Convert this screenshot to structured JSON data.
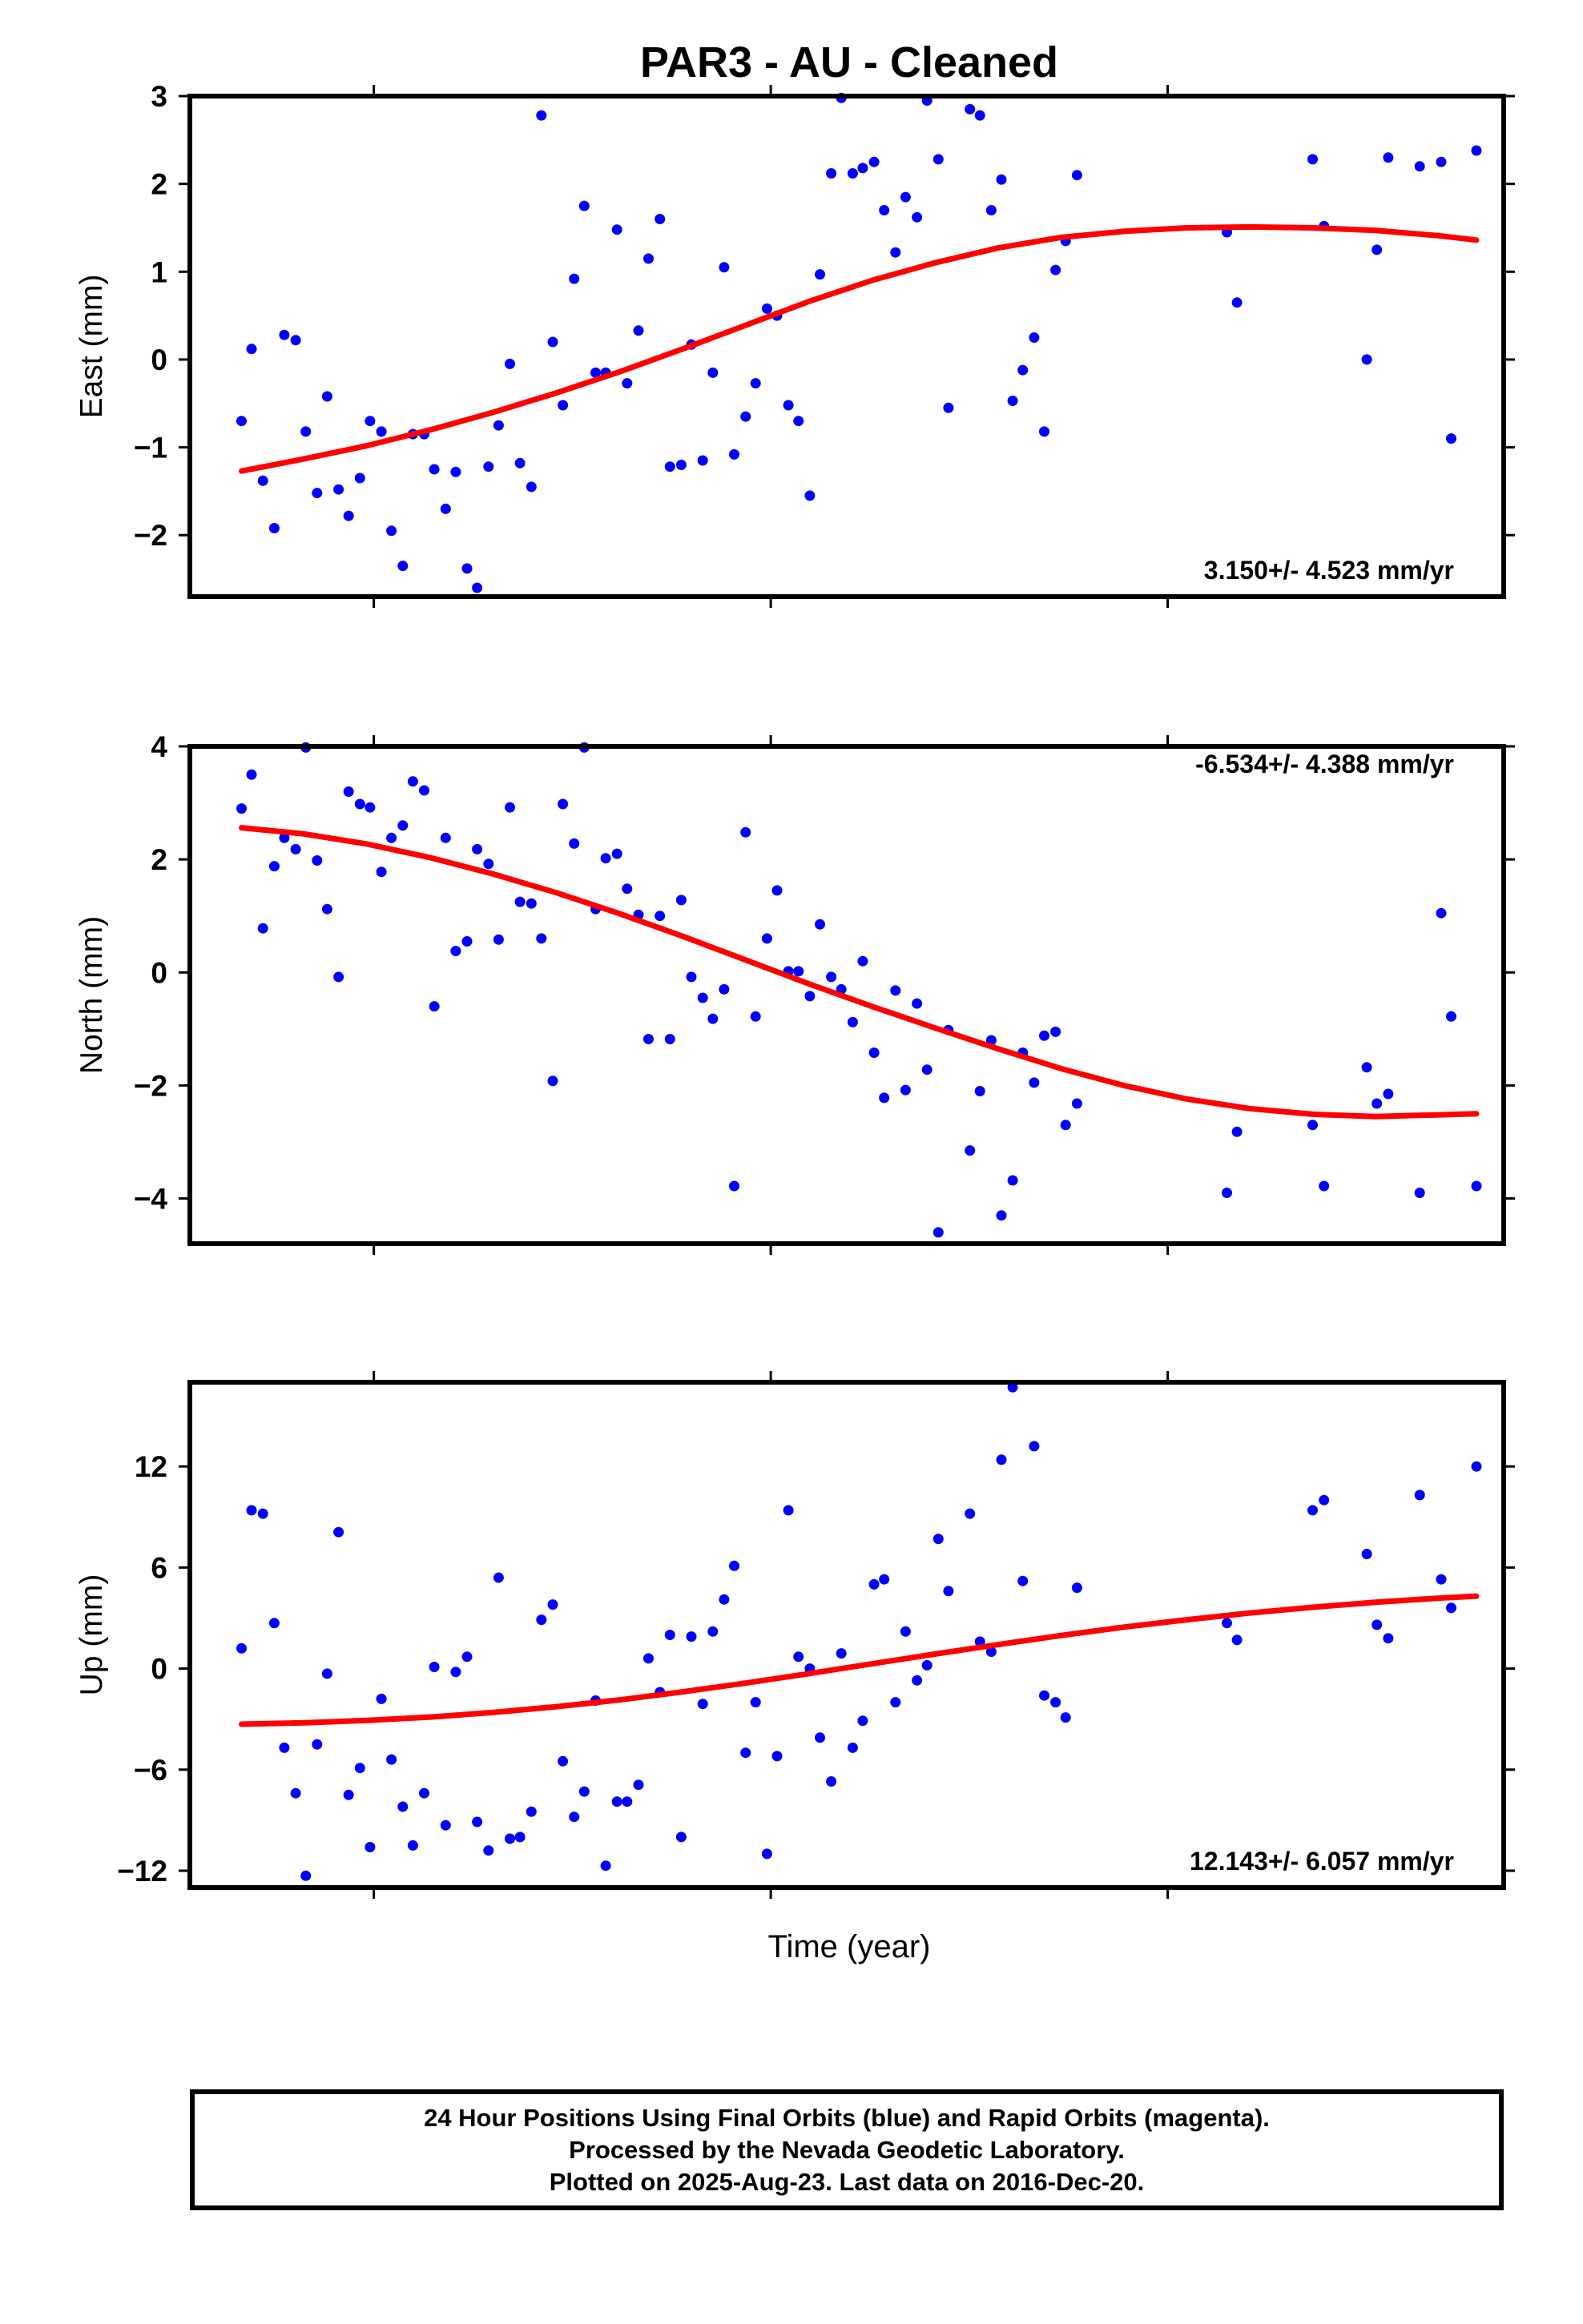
{
  "title": "PAR3  - AU - Cleaned",
  "xlabel": "Time (year)",
  "footer": {
    "line1": "24 Hour Positions Using Final Orbits (blue) and Rapid Orbits (magenta).",
    "line2": "Processed by the Nevada Geodetic Laboratory.",
    "line3": "Plotted on 2025-Aug-23. Last data on 2016-Dec-20."
  },
  "colors": {
    "points": "#0000ff",
    "fit": "#ff0000",
    "frame": "#000000"
  },
  "chart_data": [
    {
      "type": "scatter",
      "ylabel": "East (mm)",
      "rate_label": "3.150+/- 4.523 mm/yr",
      "ylim": [
        -2.7,
        3.0
      ],
      "yticks": [
        -2,
        -1,
        0,
        1,
        2,
        3
      ],
      "xlim": [
        0,
        100
      ],
      "xticks": [
        12.5,
        44,
        75.5
      ],
      "points": [
        [
          2,
          -0.7
        ],
        [
          2.8,
          0.12
        ],
        [
          3.7,
          -1.38
        ],
        [
          4.6,
          -1.92
        ],
        [
          5.4,
          0.28
        ],
        [
          6.3,
          0.22
        ],
        [
          7.1,
          -0.82
        ],
        [
          8,
          -1.52
        ],
        [
          8.8,
          -0.42
        ],
        [
          9.7,
          -1.48
        ],
        [
          10.5,
          -1.78
        ],
        [
          11.4,
          -1.35
        ],
        [
          12.2,
          -0.7
        ],
        [
          13.1,
          -0.82
        ],
        [
          13.9,
          -1.95
        ],
        [
          14.8,
          -2.35
        ],
        [
          15.6,
          -0.85
        ],
        [
          16.5,
          -0.85
        ],
        [
          17.3,
          -1.25
        ],
        [
          18.2,
          -1.7
        ],
        [
          19,
          -1.28
        ],
        [
          19.9,
          -2.38
        ],
        [
          20.7,
          -2.6
        ],
        [
          21.6,
          -1.22
        ],
        [
          22.4,
          -0.75
        ],
        [
          23.3,
          -0.05
        ],
        [
          24.1,
          -1.18
        ],
        [
          25,
          -1.45
        ],
        [
          25.8,
          2.78
        ],
        [
          26.7,
          0.2
        ],
        [
          27.5,
          -0.52
        ],
        [
          28.4,
          0.92
        ],
        [
          29.2,
          1.75
        ],
        [
          30.1,
          -0.15
        ],
        [
          30.9,
          -0.15
        ],
        [
          31.8,
          1.48
        ],
        [
          32.6,
          -0.27
        ],
        [
          33.5,
          0.33
        ],
        [
          34.3,
          1.15
        ],
        [
          35.2,
          1.6
        ],
        [
          36,
          -1.22
        ],
        [
          36.9,
          -1.2
        ],
        [
          37.7,
          0.17
        ],
        [
          38.6,
          -1.15
        ],
        [
          39.4,
          -0.15
        ],
        [
          40.3,
          1.05
        ],
        [
          41.1,
          -1.08
        ],
        [
          42,
          -0.65
        ],
        [
          42.8,
          -0.27
        ],
        [
          43.7,
          0.58
        ],
        [
          44.5,
          0.5
        ],
        [
          45.4,
          -0.52
        ],
        [
          46.2,
          -0.7
        ],
        [
          47.1,
          -1.55
        ],
        [
          47.9,
          0.97
        ],
        [
          48.8,
          2.12
        ],
        [
          49.6,
          2.98
        ],
        [
          50.5,
          2.12
        ],
        [
          51.3,
          2.18
        ],
        [
          52.2,
          2.25
        ],
        [
          53,
          1.7
        ],
        [
          53.9,
          1.22
        ],
        [
          54.7,
          1.85
        ],
        [
          55.6,
          1.62
        ],
        [
          56.4,
          2.95
        ],
        [
          57.3,
          2.28
        ],
        [
          58.1,
          -0.55
        ],
        [
          59.8,
          2.85
        ],
        [
          60.6,
          2.78
        ],
        [
          61.5,
          1.7
        ],
        [
          62.3,
          2.05
        ],
        [
          63.2,
          -0.47
        ],
        [
          64,
          -0.12
        ],
        [
          64.9,
          0.25
        ],
        [
          65.7,
          -0.82
        ],
        [
          66.6,
          1.02
        ],
        [
          67.4,
          1.35
        ],
        [
          68.3,
          2.1
        ],
        [
          80.2,
          1.45
        ],
        [
          81,
          0.65
        ],
        [
          87,
          2.28
        ],
        [
          87.9,
          1.52
        ],
        [
          91.3,
          0
        ],
        [
          92.1,
          1.25
        ],
        [
          93,
          2.3
        ],
        [
          95.5,
          2.2
        ],
        [
          97.2,
          2.25
        ],
        [
          98,
          -0.9
        ],
        [
          100,
          2.38
        ]
      ],
      "fit": [
        [
          2,
          -1.27
        ],
        [
          7,
          -1.13
        ],
        [
          12,
          -0.98
        ],
        [
          17,
          -0.8
        ],
        [
          22,
          -0.6
        ],
        [
          27,
          -0.38
        ],
        [
          32,
          -0.14
        ],
        [
          37,
          0.12
        ],
        [
          42,
          0.39
        ],
        [
          47,
          0.66
        ],
        [
          52,
          0.9
        ],
        [
          57,
          1.1
        ],
        [
          62,
          1.27
        ],
        [
          67,
          1.39
        ],
        [
          72,
          1.46
        ],
        [
          77,
          1.5
        ],
        [
          82,
          1.51
        ],
        [
          87,
          1.5
        ],
        [
          92,
          1.47
        ],
        [
          97,
          1.41
        ],
        [
          100,
          1.36
        ]
      ]
    },
    {
      "type": "scatter",
      "ylabel": "North (mm)",
      "rate_label": "-6.534+/- 4.388 mm/yr",
      "ylim": [
        -4.8,
        4.0
      ],
      "yticks": [
        -4,
        -2,
        0,
        2,
        4
      ],
      "xlim": [
        0,
        100
      ],
      "xticks": [
        12.5,
        44,
        75.5
      ],
      "points": [
        [
          2,
          2.9
        ],
        [
          2.8,
          3.5
        ],
        [
          3.7,
          0.78
        ],
        [
          4.6,
          1.88
        ],
        [
          5.4,
          2.38
        ],
        [
          6.3,
          2.18
        ],
        [
          7.1,
          3.98
        ],
        [
          8,
          1.98
        ],
        [
          8.8,
          1.12
        ],
        [
          9.7,
          -0.08
        ],
        [
          10.5,
          3.2
        ],
        [
          11.4,
          2.98
        ],
        [
          12.2,
          2.92
        ],
        [
          13.1,
          1.78
        ],
        [
          13.9,
          2.38
        ],
        [
          14.8,
          2.6
        ],
        [
          15.6,
          3.38
        ],
        [
          16.5,
          3.22
        ],
        [
          17.3,
          -0.6
        ],
        [
          18.2,
          2.38
        ],
        [
          19,
          0.38
        ],
        [
          19.9,
          0.55
        ],
        [
          20.7,
          2.18
        ],
        [
          21.6,
          1.92
        ],
        [
          22.4,
          0.58
        ],
        [
          23.3,
          2.92
        ],
        [
          24.1,
          1.25
        ],
        [
          25,
          1.22
        ],
        [
          25.8,
          0.6
        ],
        [
          26.7,
          -1.92
        ],
        [
          27.5,
          2.98
        ],
        [
          28.4,
          2.28
        ],
        [
          29.2,
          3.98
        ],
        [
          30.1,
          1.12
        ],
        [
          30.9,
          2.02
        ],
        [
          31.8,
          2.1
        ],
        [
          32.6,
          1.48
        ],
        [
          33.5,
          1.02
        ],
        [
          34.3,
          -1.18
        ],
        [
          35.2,
          1
        ],
        [
          36,
          -1.18
        ],
        [
          36.9,
          1.28
        ],
        [
          37.7,
          -0.08
        ],
        [
          38.6,
          -0.45
        ],
        [
          39.4,
          -0.82
        ],
        [
          40.3,
          -0.3
        ],
        [
          41.1,
          -3.78
        ],
        [
          42,
          2.48
        ],
        [
          42.8,
          -0.78
        ],
        [
          43.7,
          0.6
        ],
        [
          44.5,
          1.45
        ],
        [
          45.4,
          0.02
        ],
        [
          46.2,
          0.02
        ],
        [
          47.1,
          -0.42
        ],
        [
          47.9,
          0.85
        ],
        [
          48.8,
          -0.08
        ],
        [
          49.6,
          -0.3
        ],
        [
          50.5,
          -0.88
        ],
        [
          51.3,
          0.2
        ],
        [
          52.2,
          -1.42
        ],
        [
          53,
          -2.22
        ],
        [
          53.9,
          -0.32
        ],
        [
          54.7,
          -2.08
        ],
        [
          55.6,
          -0.55
        ],
        [
          56.4,
          -1.72
        ],
        [
          57.3,
          -4.6
        ],
        [
          58.1,
          -1.02
        ],
        [
          59.8,
          -3.15
        ],
        [
          60.6,
          -2.1
        ],
        [
          61.5,
          -1.2
        ],
        [
          62.3,
          -4.3
        ],
        [
          63.2,
          -3.68
        ],
        [
          64,
          -1.42
        ],
        [
          64.9,
          -1.95
        ],
        [
          65.7,
          -1.12
        ],
        [
          66.6,
          -1.05
        ],
        [
          67.4,
          -2.7
        ],
        [
          68.3,
          -2.32
        ],
        [
          80.2,
          -3.9
        ],
        [
          81,
          -2.82
        ],
        [
          87,
          -2.7
        ],
        [
          87.9,
          -3.78
        ],
        [
          91.3,
          -1.68
        ],
        [
          92.1,
          -2.32
        ],
        [
          93,
          -2.15
        ],
        [
          95.5,
          -3.9
        ],
        [
          97.2,
          1.05
        ],
        [
          98,
          -0.78
        ],
        [
          100,
          -3.78
        ]
      ],
      "fit": [
        [
          2,
          2.56
        ],
        [
          7,
          2.45
        ],
        [
          12,
          2.27
        ],
        [
          17,
          2.03
        ],
        [
          22,
          1.74
        ],
        [
          27,
          1.41
        ],
        [
          32,
          1.04
        ],
        [
          37,
          0.64
        ],
        [
          42,
          0.22
        ],
        [
          47,
          -0.2
        ],
        [
          52,
          -0.6
        ],
        [
          57,
          -0.98
        ],
        [
          62,
          -1.35
        ],
        [
          67,
          -1.7
        ],
        [
          72,
          -2.0
        ],
        [
          77,
          -2.24
        ],
        [
          82,
          -2.41
        ],
        [
          87,
          -2.51
        ],
        [
          92,
          -2.55
        ],
        [
          97,
          -2.52
        ],
        [
          100,
          -2.5
        ]
      ]
    },
    {
      "type": "scatter",
      "ylabel": "Up (mm)",
      "rate_label": "12.143+/- 6.057 mm/yr",
      "ylim": [
        -13,
        17
      ],
      "yticks": [
        -12,
        -6,
        0,
        6,
        12
      ],
      "xlim": [
        0,
        100
      ],
      "xticks": [
        12.5,
        44,
        75.5
      ],
      "points": [
        [
          2,
          1.2
        ],
        [
          2.8,
          9.4
        ],
        [
          3.7,
          9.2
        ],
        [
          4.6,
          2.7
        ],
        [
          5.4,
          -4.7
        ],
        [
          6.3,
          -7.4
        ],
        [
          7.1,
          -12.3
        ],
        [
          8,
          -4.5
        ],
        [
          8.8,
          -0.3
        ],
        [
          9.7,
          8.1
        ],
        [
          10.5,
          -7.5
        ],
        [
          11.4,
          -5.9
        ],
        [
          12.2,
          -10.6
        ],
        [
          13.1,
          -1.8
        ],
        [
          13.9,
          -5.4
        ],
        [
          14.8,
          -8.2
        ],
        [
          15.6,
          -10.5
        ],
        [
          16.5,
          -7.4
        ],
        [
          17.3,
          0.1
        ],
        [
          18.2,
          -9.3
        ],
        [
          19,
          -0.2
        ],
        [
          19.9,
          0.7
        ],
        [
          20.7,
          -9.1
        ],
        [
          21.6,
          -10.8
        ],
        [
          22.4,
          5.4
        ],
        [
          23.3,
          -10.1
        ],
        [
          24.1,
          -10
        ],
        [
          25,
          -8.5
        ],
        [
          25.8,
          2.9
        ],
        [
          26.7,
          3.8
        ],
        [
          27.5,
          -5.5
        ],
        [
          28.4,
          -8.8
        ],
        [
          29.2,
          -7.3
        ],
        [
          30.1,
          -1.9
        ],
        [
          30.9,
          -11.7
        ],
        [
          31.8,
          -7.9
        ],
        [
          32.6,
          -7.9
        ],
        [
          33.5,
          -6.9
        ],
        [
          34.3,
          0.6
        ],
        [
          35.2,
          -1.4
        ],
        [
          36,
          2
        ],
        [
          36.9,
          -10
        ],
        [
          37.7,
          1.9
        ],
        [
          38.6,
          -2.1
        ],
        [
          39.4,
          2.2
        ],
        [
          40.3,
          4.1
        ],
        [
          41.1,
          6.1
        ],
        [
          42,
          -5
        ],
        [
          42.8,
          -2
        ],
        [
          43.7,
          -11
        ],
        [
          44.5,
          -5.2
        ],
        [
          45.4,
          9.4
        ],
        [
          46.2,
          0.7
        ],
        [
          47.1,
          0
        ],
        [
          47.9,
          -4.1
        ],
        [
          48.8,
          -6.7
        ],
        [
          49.6,
          0.9
        ],
        [
          50.5,
          -4.7
        ],
        [
          51.3,
          -3.1
        ],
        [
          52.2,
          5
        ],
        [
          53,
          5.3
        ],
        [
          53.9,
          -2
        ],
        [
          54.7,
          2.2
        ],
        [
          55.6,
          -0.7
        ],
        [
          56.4,
          0.2
        ],
        [
          57.3,
          7.7
        ],
        [
          58.1,
          4.6
        ],
        [
          59.8,
          9.2
        ],
        [
          60.6,
          1.6
        ],
        [
          61.5,
          1
        ],
        [
          62.3,
          12.4
        ],
        [
          63.2,
          16.7
        ],
        [
          64,
          5.2
        ],
        [
          64.9,
          13.2
        ],
        [
          65.7,
          -1.6
        ],
        [
          66.6,
          -2
        ],
        [
          67.4,
          -2.9
        ],
        [
          68.3,
          4.8
        ],
        [
          80.2,
          2.7
        ],
        [
          81,
          1.7
        ],
        [
          87,
          9.4
        ],
        [
          87.9,
          10
        ],
        [
          91.3,
          6.8
        ],
        [
          92.1,
          2.6
        ],
        [
          93,
          1.8
        ],
        [
          95.5,
          10.3
        ],
        [
          97.2,
          5.3
        ],
        [
          98,
          3.6
        ],
        [
          100,
          12
        ]
      ],
      "fit": [
        [
          2,
          -3.3
        ],
        [
          7,
          -3.22
        ],
        [
          12,
          -3.08
        ],
        [
          17,
          -2.88
        ],
        [
          22,
          -2.6
        ],
        [
          27,
          -2.26
        ],
        [
          32,
          -1.86
        ],
        [
          37,
          -1.38
        ],
        [
          42,
          -0.86
        ],
        [
          47,
          -0.3
        ],
        [
          52,
          0.28
        ],
        [
          57,
          0.86
        ],
        [
          62,
          1.42
        ],
        [
          67,
          1.96
        ],
        [
          72,
          2.46
        ],
        [
          77,
          2.9
        ],
        [
          82,
          3.3
        ],
        [
          87,
          3.64
        ],
        [
          92,
          3.94
        ],
        [
          97,
          4.18
        ],
        [
          100,
          4.3
        ]
      ]
    }
  ]
}
